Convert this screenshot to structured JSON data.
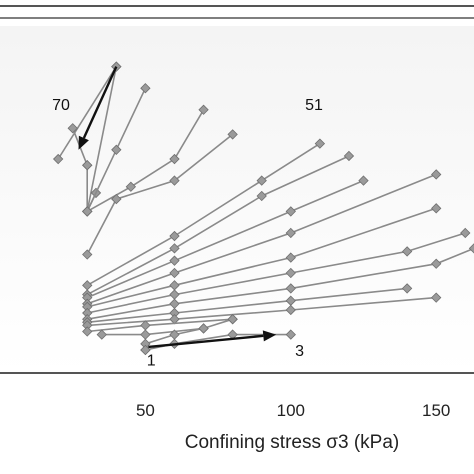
{
  "chart_data": {
    "type": "line",
    "title": "",
    "xlabel": "Confining stress σ3 (kPa)",
    "ylabel": "",
    "xlim": [
      0,
      163
    ],
    "ylim": [
      0,
      100
    ],
    "grid": false,
    "x_ticks": [
      {
        "value": 50,
        "label": "50"
      },
      {
        "value": 100,
        "label": "100"
      },
      {
        "value": 150,
        "label": "150"
      }
    ],
    "series": [
      {
        "x": [
          40,
          20
        ],
        "y": [
          92,
          62
        ]
      },
      {
        "x": [
          40,
          30
        ],
        "y": [
          92,
          45
        ]
      },
      {
        "x": [
          25,
          30
        ],
        "y": [
          72,
          60
        ]
      },
      {
        "x": [
          30,
          30,
          33
        ],
        "y": [
          60,
          45,
          51
        ]
      },
      {
        "x": [
          30,
          40,
          50
        ],
        "y": [
          45,
          65,
          85
        ]
      },
      {
        "x": [
          30,
          45,
          60,
          70
        ],
        "y": [
          45,
          53,
          62,
          78
        ]
      },
      {
        "x": [
          30,
          40,
          60,
          80
        ],
        "y": [
          31,
          49,
          55,
          70
        ]
      },
      {
        "x": [
          30,
          60,
          90,
          110
        ],
        "y": [
          21,
          37,
          55,
          67
        ]
      },
      {
        "x": [
          30,
          60,
          90,
          120
        ],
        "y": [
          18,
          33,
          50,
          63
        ]
      },
      {
        "x": [
          30,
          60,
          100,
          125
        ],
        "y": [
          17,
          29,
          45,
          55
        ]
      },
      {
        "x": [
          30,
          60,
          100,
          150
        ],
        "y": [
          15,
          25,
          38,
          57
        ]
      },
      {
        "x": [
          30,
          60,
          100,
          150
        ],
        "y": [
          14,
          21,
          30,
          46
        ]
      },
      {
        "x": [
          30,
          60,
          100,
          140,
          160
        ],
        "y": [
          12,
          18,
          25,
          32,
          38
        ]
      },
      {
        "x": [
          30,
          60,
          100,
          150,
          163
        ],
        "y": [
          10,
          15,
          20,
          28,
          33
        ]
      },
      {
        "x": [
          30,
          60,
          100,
          140
        ],
        "y": [
          9,
          12,
          16,
          20
        ]
      },
      {
        "x": [
          30,
          60,
          100,
          150
        ],
        "y": [
          8,
          10,
          13,
          17
        ]
      },
      {
        "x": [
          30,
          50,
          80
        ],
        "y": [
          6,
          8,
          10
        ]
      },
      {
        "x": [
          35,
          50,
          70,
          80
        ],
        "y": [
          5,
          5,
          7,
          10
        ]
      },
      {
        "x": [
          50,
          50,
          60,
          70
        ],
        "y": [
          0,
          2,
          5,
          7
        ]
      },
      {
        "x": [
          50,
          60,
          80,
          100
        ],
        "y": [
          0,
          2,
          5,
          5
        ]
      }
    ],
    "annotations": [
      {
        "text": "70",
        "x": 21,
        "y": 78
      },
      {
        "text": "51",
        "x": 108,
        "y": 78
      },
      {
        "text": "1",
        "x": 52,
        "y": -5
      },
      {
        "text": "3",
        "x": 103,
        "y": -2
      }
    ],
    "arrows": [
      {
        "from_x": 40,
        "from_y": 92,
        "to_x": 27,
        "to_y": 65
      },
      {
        "from_x": 51,
        "from_y": 1,
        "to_x": 95,
        "to_y": 5
      }
    ]
  }
}
